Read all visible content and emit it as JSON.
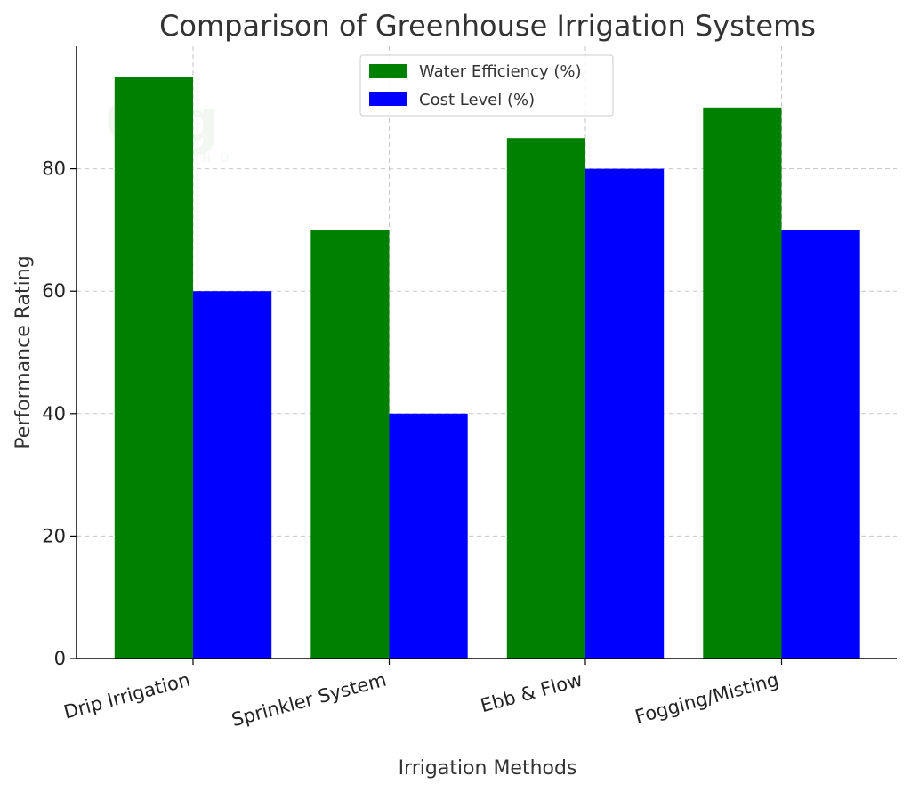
{
  "chart_data": {
    "type": "bar",
    "title": "Comparison of Greenhouse Irrigation Systems",
    "xlabel": "Irrigation Methods",
    "ylabel": "Performance Rating",
    "categories": [
      "Drip Irrigation",
      "Sprinkler System",
      "Ebb & Flow",
      "Fogging/Misting"
    ],
    "series": [
      {
        "name": "Water Efficiency (%)",
        "values": [
          95,
          70,
          85,
          90
        ],
        "color": "#008000"
      },
      {
        "name": "Cost Level (%)",
        "values": [
          60,
          40,
          80,
          70
        ],
        "color": "#0000ff"
      }
    ],
    "ylim": [
      0,
      100
    ],
    "yticks": [
      0,
      20,
      40,
      60,
      80
    ],
    "grid": true,
    "legend_position": "top-center"
  },
  "watermark": {
    "logo_text": "Cfg",
    "sub_text": "GREENHO"
  }
}
